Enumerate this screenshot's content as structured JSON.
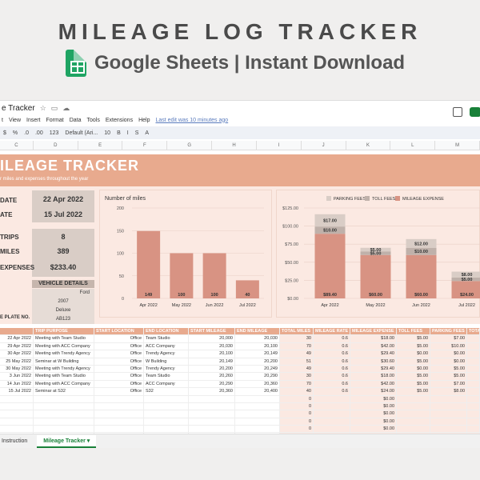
{
  "header": {
    "title": "MILEAGE LOG TRACKER",
    "subtitle": "Google Sheets | Instant Download"
  },
  "window": {
    "doc_title": "e Tracker",
    "last_edit": "Last edit was 10 minutes ago",
    "menu": [
      "t",
      "View",
      "Insert",
      "Format",
      "Data",
      "Tools",
      "Extensions",
      "Help"
    ],
    "toolbar": [
      "$",
      "%",
      ".0",
      ".00",
      "123",
      "Default (Ari...",
      "10",
      "B",
      "I",
      "S",
      "A"
    ],
    "columns": [
      "C",
      "D",
      "E",
      "F",
      "G",
      "H",
      "I",
      "J",
      "K",
      "L",
      "M"
    ]
  },
  "banner": {
    "title": "ILEAGE TRACKER",
    "subtitle": "r miles and expenses throughout the year"
  },
  "stats": [
    {
      "label": "DATE",
      "value": "22 Apr 2022"
    },
    {
      "label": "ATE",
      "value": "15 Jul 2022"
    },
    {
      "label": "TRIPS",
      "value": "8"
    },
    {
      "label": "MILES",
      "value": "389"
    },
    {
      "label": "EXPENSES",
      "value": "$233.40"
    }
  ],
  "vehicle": {
    "title": "VEHICLE DETAILS",
    "rows": [
      "Ford",
      "2007",
      "Deluxe",
      "AB123"
    ],
    "plate_label": "E PLATE NO."
  },
  "chart1_title": "Number of miles",
  "chart_data": [
    {
      "type": "bar",
      "title": "Number of miles",
      "categories": [
        "Apr 2022",
        "May 2022",
        "Jun 2022",
        "Jul 2022"
      ],
      "values": [
        149,
        100,
        100,
        40
      ],
      "ylim": [
        0,
        200
      ],
      "yticks": [
        "0",
        "50",
        "100",
        "150",
        "200"
      ],
      "color": "#d89383"
    },
    {
      "type": "bar",
      "stacked": true,
      "categories": [
        "Apr 2022",
        "May 2022",
        "Jun 2022",
        "Jul 2022"
      ],
      "series": [
        {
          "name": "MILEAGE EXPENSE",
          "values": [
            89.4,
            60,
            60,
            24
          ],
          "labels": [
            "$89.40",
            "$60.00",
            "$60.00",
            "$24.00"
          ],
          "color": "#d89383"
        },
        {
          "name": "TOLL FEES",
          "values": [
            10,
            5,
            10,
            5
          ],
          "labels": [
            "$10.00",
            "$5.00",
            "$10.00",
            "$5.00"
          ],
          "color": "#bfb1aa"
        },
        {
          "name": "PARKING FEES",
          "values": [
            17,
            5,
            12,
            8
          ],
          "labels": [
            "$17.00",
            "$5.00",
            "$12.00",
            "$8.00"
          ],
          "color": "#d9cdc6"
        }
      ],
      "ylim": [
        0,
        125
      ],
      "yticks": [
        "$0.00",
        "$25.00",
        "$50.00",
        "$75.00",
        "$100.00",
        "$125.00"
      ],
      "legend": "top"
    }
  ],
  "table": {
    "headers": [
      "",
      "TRIP PURPOSE",
      "START LOCATION",
      "END LOCATION",
      "START MILEAGE",
      "END MILEAGE",
      "TOTAL MILES",
      "MILEAGE RATE",
      "MILEAGE EXPENSE",
      "TOLL FEES",
      "PARKING FEES",
      "TOTA"
    ],
    "rows": [
      [
        "22 Apr 2022",
        "Meeting with Team Studio",
        "Office",
        "Team Studio",
        "20,000",
        "20,030",
        "30",
        "0.6",
        "$18.00",
        "$5.00",
        "$7.00",
        ""
      ],
      [
        "29 Apr 2022",
        "Meeting with ACC Company",
        "Office",
        "ACC Company",
        "20,030",
        "20,100",
        "70",
        "0.6",
        "$42.00",
        "$5.00",
        "$10.00",
        ""
      ],
      [
        "30 Apr 2022",
        "Meeting with Trendy Agency",
        "Office",
        "Trendy Agency",
        "20,100",
        "20,149",
        "49",
        "0.6",
        "$29.40",
        "$0.00",
        "$0.00",
        ""
      ],
      [
        "25 May 2022",
        "Seminar at W Building",
        "Office",
        "W Building",
        "20,149",
        "20,200",
        "51",
        "0.6",
        "$30.60",
        "$5.00",
        "$0.00",
        ""
      ],
      [
        "30 May 2022",
        "Meeting with Trendy Agency",
        "Office",
        "Trendy Agency",
        "20,200",
        "20,249",
        "49",
        "0.6",
        "$29.40",
        "$0.00",
        "$5.00",
        ""
      ],
      [
        "3 Jun 2022",
        "Meeting with Team Studio",
        "Office",
        "Team Studio",
        "20,260",
        "20,290",
        "30",
        "0.6",
        "$18.00",
        "$5.00",
        "$5.00",
        ""
      ],
      [
        "14 Jun 2022",
        "Meeting with ACC Company",
        "Office",
        "ACC Company",
        "20,290",
        "20,360",
        "70",
        "0.6",
        "$42.00",
        "$5.00",
        "$7.00",
        ""
      ],
      [
        "15 Jul 2022",
        "Seminar at S32",
        "Office",
        "S32",
        "20,360",
        "20,400",
        "40",
        "0.6",
        "$24.00",
        "$5.00",
        "$8.00",
        ""
      ],
      [
        "",
        "",
        "",
        "",
        "",
        "",
        "0",
        "",
        "$0.00",
        "",
        "",
        ""
      ],
      [
        "",
        "",
        "",
        "",
        "",
        "",
        "0",
        "",
        "$0.00",
        "",
        "",
        ""
      ],
      [
        "",
        "",
        "",
        "",
        "",
        "",
        "0",
        "",
        "$0.00",
        "",
        "",
        ""
      ],
      [
        "",
        "",
        "",
        "",
        "",
        "",
        "0",
        "",
        "$0.00",
        "",
        "",
        ""
      ],
      [
        "",
        "",
        "",
        "",
        "",
        "",
        "0",
        "",
        "$0.00",
        "",
        "",
        ""
      ],
      [
        "",
        "",
        "",
        "",
        "",
        "",
        "0",
        "",
        "$0.00",
        "",
        "",
        ""
      ]
    ]
  },
  "tabs": {
    "instruction": "Instruction",
    "active": "Mileage Tracker"
  }
}
